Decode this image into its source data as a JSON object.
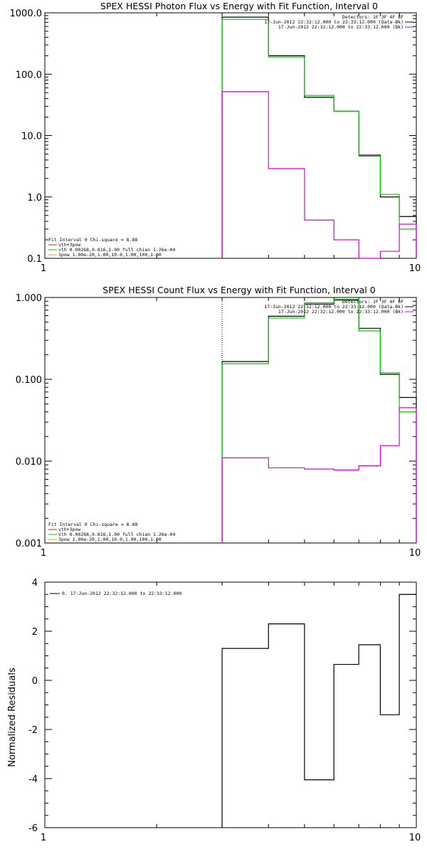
{
  "chart_data": [
    {
      "type": "line",
      "title": "SPEX HESSI Photon Flux vs Energy with Fit Function, Interval 0",
      "ylabel": "",
      "xlabel": "",
      "xscale": "log",
      "yscale": "log",
      "xlim": [
        1,
        10
      ],
      "ylim": [
        0.1,
        1000
      ],
      "xticklabels": [
        "1",
        "10"
      ],
      "yticklabels": [
        "0.1",
        "1.0",
        "10.0",
        "100.0",
        "1000.0"
      ],
      "legend_top_right": [
        "Detectors: 1F 3F 4F 8F",
        "17-Jun-2012 22:32:12.000 to 22:33:12.000 (Data-Bk)",
        "17-Jun-2012 22:32:12.000 to 22:33:12.000 (Bk)"
      ],
      "legend_bottom_left": [
        "Fit Interval 0   Chi-square = 8.88",
        "vth+3pow",
        "vth 0.00268,0.816,1.00  full chian 1.26e-04",
        "3pow 1.00e-20,1.00,10.0,1.00,100,1.00"
      ],
      "vline_x": 3.0,
      "bin_edges": [
        3.0,
        4.0,
        5.0,
        6.0,
        7.0,
        8.0,
        9.0,
        10.0
      ],
      "series": [
        {
          "color": "#000000",
          "values": [
            850,
            200,
            42,
            25,
            4.8,
            1.0,
            0.48
          ]
        },
        {
          "color": "#00cc00",
          "values": [
            780,
            190,
            45,
            25,
            4.6,
            1.1,
            0.3
          ]
        },
        {
          "color": "#dd00dd",
          "values": [
            52,
            2.9,
            0.42,
            0.2,
            0.1,
            0.13,
            0.36
          ]
        }
      ]
    },
    {
      "type": "line",
      "title": "SPEX HESSI Count Flux vs Energy with Fit Function, Interval 0",
      "ylabel": "",
      "xlabel": "",
      "xscale": "log",
      "yscale": "log",
      "xlim": [
        1,
        10
      ],
      "ylim": [
        0.001,
        1.0
      ],
      "xticklabels": [
        "1",
        "10"
      ],
      "yticklabels": [
        "0.001",
        "0.010",
        "0.100",
        "1.000"
      ],
      "legend_top_right": [
        "Detectors: 1F 3F 4F 8F",
        "17-Jun-2012 22:32:12.000 to 22:33:12.000 (Data-Bk)",
        "17-Jun-2012 22:32:12.000 to 22:33:12.000 (Bk)"
      ],
      "legend_bottom_left": [
        "Fit Interval 0   Chi-square = 8.88",
        "vth+3pow",
        "vth 0.00268,0.816,1.00  full chian 1.26e-04",
        "3pow 1.00e-20,1.00,10.0,1.00,100,1.00"
      ],
      "vline_x": 3.0,
      "bin_edges": [
        3.0,
        4.0,
        5.0,
        6.0,
        7.0,
        8.0,
        9.0,
        10.0
      ],
      "series": [
        {
          "color": "#000000",
          "values": [
            0.165,
            0.59,
            0.83,
            0.93,
            0.42,
            0.115,
            0.06
          ]
        },
        {
          "color": "#00cc00",
          "values": [
            0.155,
            0.56,
            0.86,
            0.95,
            0.39,
            0.12,
            0.04
          ]
        },
        {
          "color": "#dd00dd",
          "values": [
            0.011,
            0.0083,
            0.008,
            0.0078,
            0.0088,
            0.0155,
            0.045
          ]
        }
      ]
    },
    {
      "type": "line",
      "title": "",
      "ylabel": "Normalized Residuals",
      "xlabel": "",
      "xscale": "log",
      "yscale": "linear",
      "xlim": [
        1,
        10
      ],
      "ylim": [
        -6,
        4
      ],
      "xticklabels": [
        "1",
        "10"
      ],
      "yticklabels": [
        "-6",
        "-4",
        "-2",
        "0",
        "2",
        "4"
      ],
      "legend_top_left": [
        "0. 17-Jun-2012 22:32:12.000 to 22:33:12.000"
      ],
      "bin_edges": [
        3.0,
        4.0,
        5.0,
        6.0,
        7.0,
        8.0,
        9.0,
        10.0
      ],
      "series": [
        {
          "color": "#000000",
          "values": [
            1.3,
            2.3,
            -4.05,
            0.65,
            1.45,
            -1.4,
            3.5
          ]
        }
      ]
    }
  ]
}
